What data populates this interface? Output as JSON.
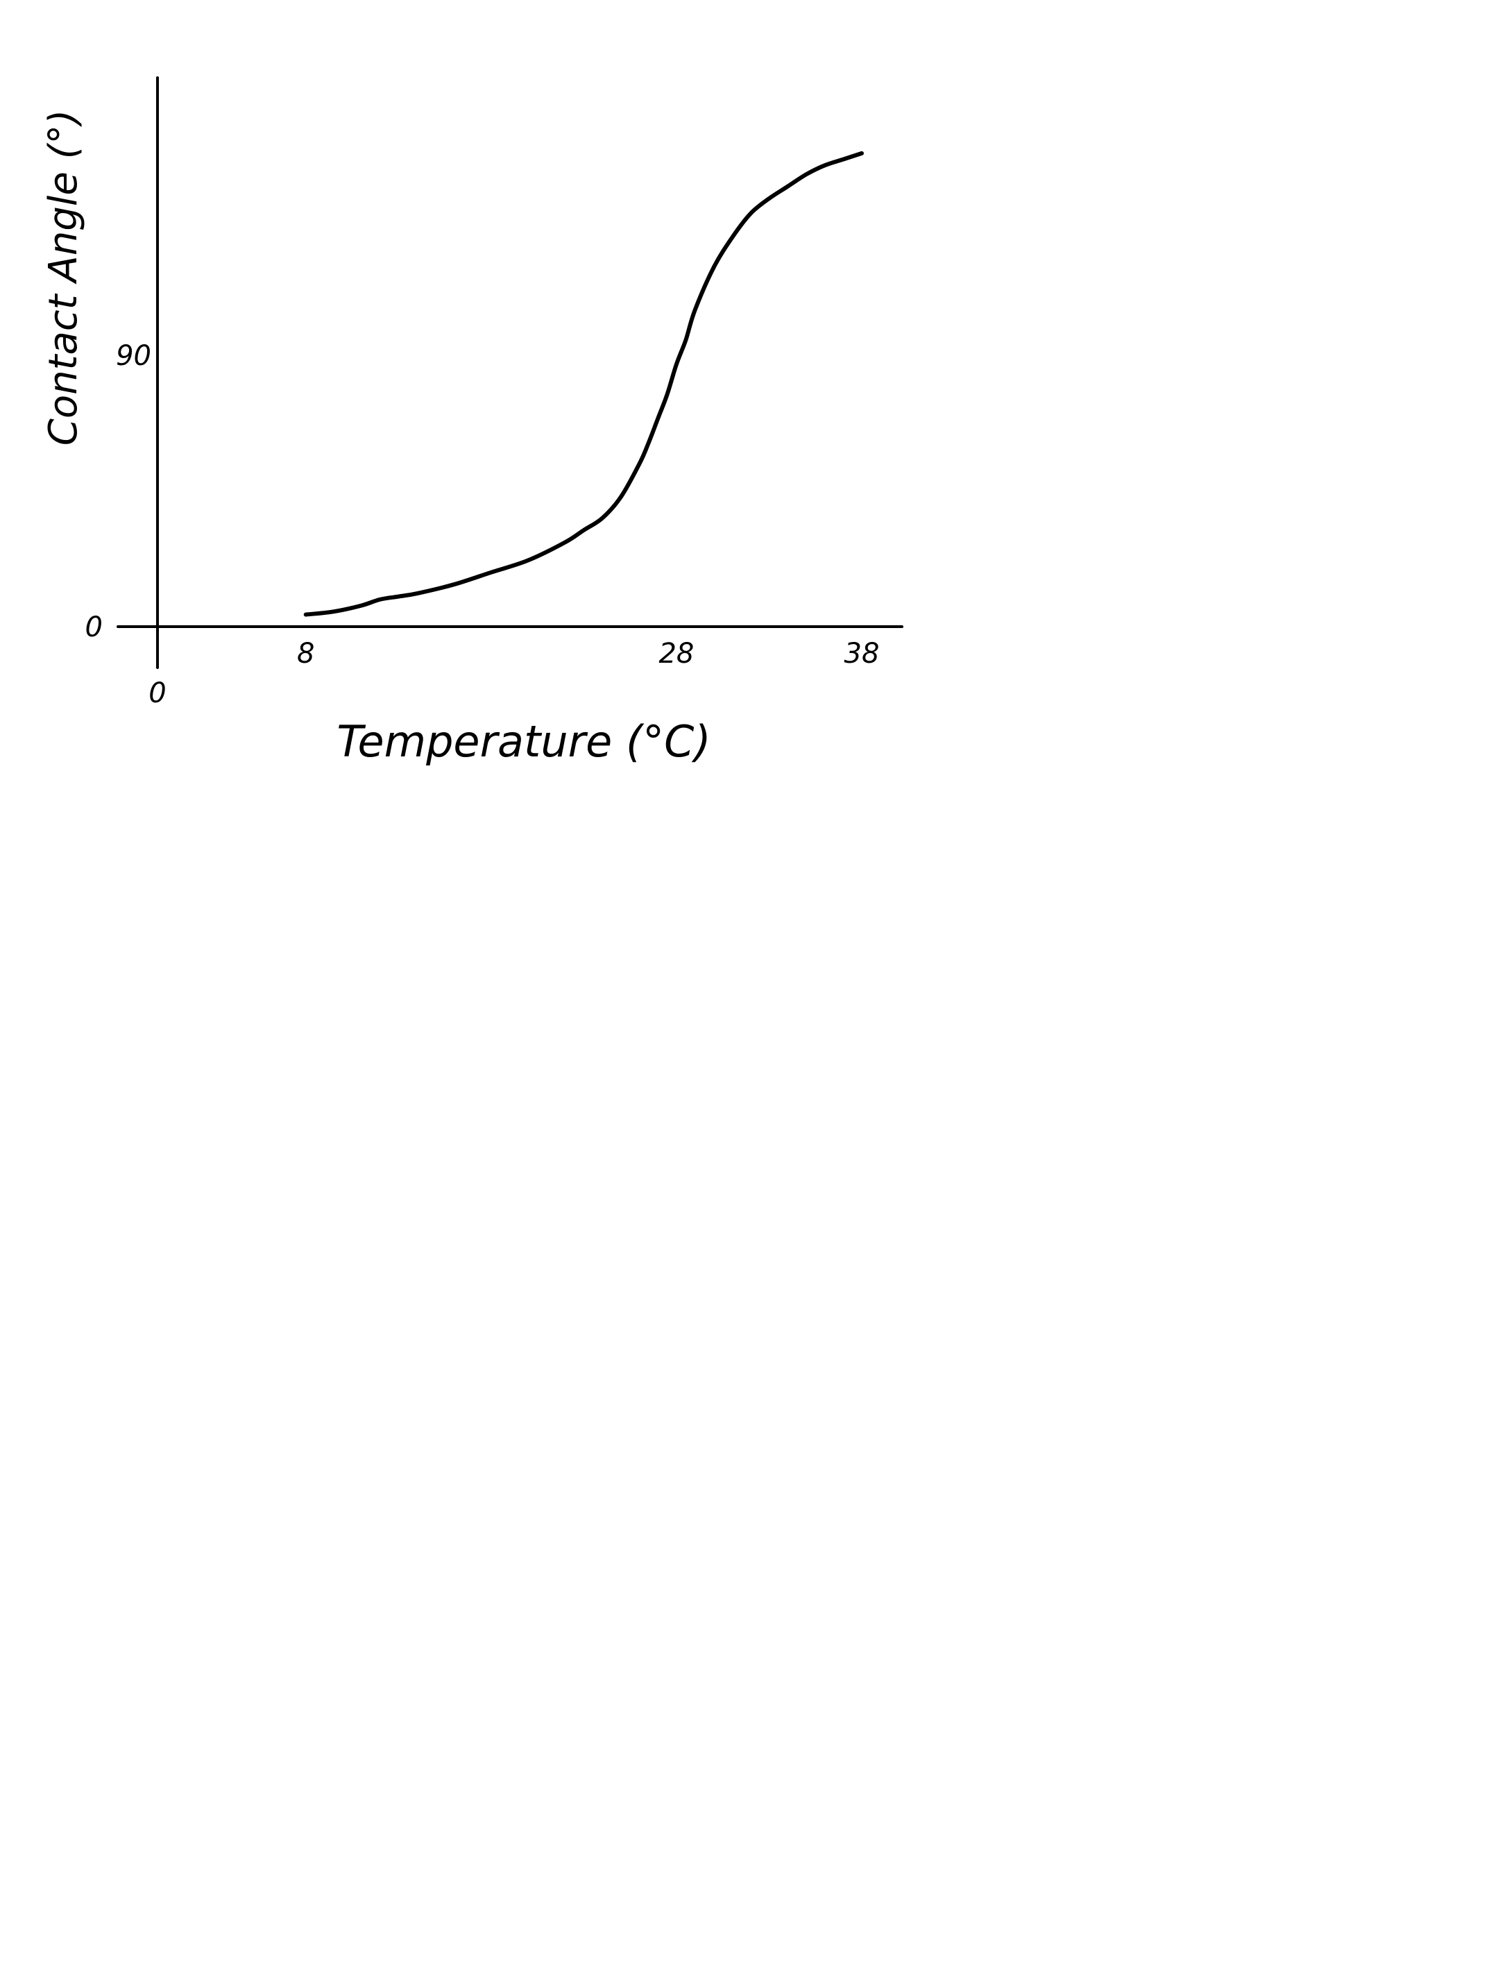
{
  "chart_data": {
    "type": "line",
    "title": "",
    "xlabel": "Temperature (°C)",
    "ylabel": "Contact Angle (°)",
    "xlim": [
      0,
      41
    ],
    "ylim": [
      0,
      160
    ],
    "grid": false,
    "legend": "none",
    "x_ticks": [
      {
        "value": 0,
        "label": "0"
      },
      {
        "value": 8,
        "label": "8"
      },
      {
        "value": 28,
        "label": "28"
      },
      {
        "value": 38,
        "label": "38"
      }
    ],
    "y_ticks": [
      {
        "value": 0,
        "label": "0"
      },
      {
        "value": 90,
        "label": "90"
      }
    ],
    "series": [
      {
        "color": "#000000",
        "x": [
          8,
          9.5,
          11,
          12,
          13,
          14,
          16,
          18,
          20,
          22,
          23,
          24,
          25,
          26,
          26.5,
          27,
          27.5,
          28,
          28.5,
          29,
          30,
          31,
          32,
          33,
          34,
          35,
          36,
          37,
          38
        ],
        "y": [
          4,
          5,
          7,
          9,
          10,
          11,
          14,
          18,
          22,
          28,
          32,
          36,
          43,
          54,
          61,
          69,
          77,
          87,
          95,
          105,
          119,
          129,
          137,
          142,
          146,
          150,
          153,
          155,
          157
        ]
      }
    ]
  }
}
